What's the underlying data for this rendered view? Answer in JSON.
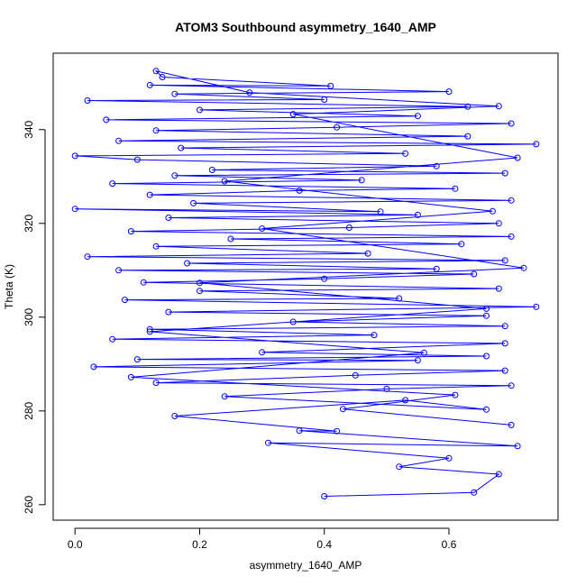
{
  "chart_data": {
    "type": "line",
    "title": "ATOM3 Southbound asymmetry_1640_AMP",
    "xlabel": "asymmetry_1640_AMP",
    "ylabel": "Theta (K)",
    "xlim": [
      -0.035,
      0.775
    ],
    "ylim": [
      256.7,
      356.3
    ],
    "xticks": [
      0.0,
      0.2,
      0.4,
      0.6
    ],
    "xtick_labels": [
      "0.0",
      "0.2",
      "0.4",
      "0.6"
    ],
    "yticks": [
      260,
      280,
      300,
      320,
      340
    ],
    "ytick_labels": [
      "260",
      "280",
      "300",
      "320",
      "340"
    ],
    "grid": false,
    "legend": "none",
    "series_color": "#0000ff",
    "markers": "open-circle",
    "series": [
      {
        "values_description": "",
        "points": [
          [
            0.4,
            261.8
          ],
          [
            0.64,
            262.6
          ],
          [
            0.68,
            266.5
          ],
          [
            0.52,
            268.1
          ],
          [
            0.6,
            269.9
          ],
          [
            0.31,
            273.2
          ],
          [
            0.71,
            272.5
          ],
          [
            0.36,
            275.8
          ],
          [
            0.42,
            275.7
          ],
          [
            0.16,
            278.9
          ],
          [
            0.53,
            282.3
          ],
          [
            0.66,
            280.3
          ],
          [
            0.24,
            283.1
          ],
          [
            0.5,
            284.7
          ],
          [
            0.7,
            285.4
          ],
          [
            0.13,
            286.0
          ],
          [
            0.45,
            287.6
          ],
          [
            0.69,
            288.6
          ],
          [
            0.03,
            289.4
          ],
          [
            0.55,
            290.8
          ],
          [
            0.1,
            291.0
          ],
          [
            0.66,
            291.7
          ],
          [
            0.3,
            292.5
          ],
          [
            0.69,
            294.4
          ],
          [
            0.06,
            295.3
          ],
          [
            0.48,
            296.2
          ],
          [
            0.12,
            297.4
          ],
          [
            0.69,
            298.1
          ],
          [
            0.35,
            299.0
          ],
          [
            0.66,
            300.3
          ],
          [
            0.15,
            301.1
          ],
          [
            0.74,
            302.2
          ],
          [
            0.08,
            303.7
          ],
          [
            0.52,
            304.0
          ],
          [
            0.2,
            305.6
          ],
          [
            0.68,
            306.1
          ],
          [
            0.11,
            307.4
          ],
          [
            0.4,
            308.2
          ],
          [
            0.64,
            309.2
          ],
          [
            0.07,
            310.0
          ],
          [
            0.58,
            310.3
          ],
          [
            0.18,
            311.5
          ],
          [
            0.69,
            312.1
          ],
          [
            0.02,
            312.9
          ],
          [
            0.47,
            313.6
          ],
          [
            0.13,
            315.1
          ],
          [
            0.62,
            315.6
          ],
          [
            0.25,
            316.7
          ],
          [
            0.7,
            317.2
          ],
          [
            0.09,
            318.3
          ],
          [
            0.44,
            319.1
          ],
          [
            0.68,
            320.0
          ],
          [
            0.15,
            321.2
          ],
          [
            0.55,
            321.8
          ],
          [
            0.0,
            323.1
          ],
          [
            0.49,
            322.5
          ],
          [
            0.19,
            324.3
          ],
          [
            0.7,
            324.9
          ],
          [
            0.12,
            326.1
          ],
          [
            0.36,
            327.0
          ],
          [
            0.61,
            327.4
          ],
          [
            0.06,
            328.5
          ],
          [
            0.46,
            329.2
          ],
          [
            0.16,
            330.2
          ],
          [
            0.69,
            330.7
          ],
          [
            0.22,
            331.4
          ],
          [
            0.58,
            332.2
          ],
          [
            0.1,
            333.6
          ],
          [
            0.0,
            334.4
          ],
          [
            0.53,
            334.9
          ],
          [
            0.17,
            336.1
          ],
          [
            0.74,
            336.9
          ],
          [
            0.07,
            337.6
          ],
          [
            0.63,
            338.6
          ],
          [
            0.13,
            339.8
          ],
          [
            0.42,
            340.5
          ],
          [
            0.7,
            341.3
          ],
          [
            0.05,
            342.1
          ],
          [
            0.55,
            342.9
          ],
          [
            0.2,
            344.2
          ],
          [
            0.63,
            344.9
          ],
          [
            0.02,
            346.2
          ],
          [
            0.4,
            346.4
          ],
          [
            0.16,
            347.6
          ],
          [
            0.6,
            348.1
          ],
          [
            0.12,
            349.5
          ],
          [
            0.41,
            349.3
          ],
          [
            0.14,
            351.2
          ],
          [
            0.13,
            352.5
          ],
          [
            0.28,
            347.9
          ],
          [
            0.68,
            345.0
          ],
          [
            0.35,
            343.3
          ],
          [
            0.71,
            334.0
          ],
          [
            0.24,
            329.0
          ],
          [
            0.67,
            322.6
          ],
          [
            0.3,
            318.9
          ],
          [
            0.72,
            310.5
          ],
          [
            0.2,
            307.3
          ],
          [
            0.66,
            301.8
          ],
          [
            0.12,
            296.9
          ],
          [
            0.56,
            292.4
          ],
          [
            0.09,
            287.2
          ],
          [
            0.61,
            283.4
          ],
          [
            0.43,
            280.4
          ],
          [
            0.7,
            277.0
          ]
        ]
      }
    ]
  }
}
